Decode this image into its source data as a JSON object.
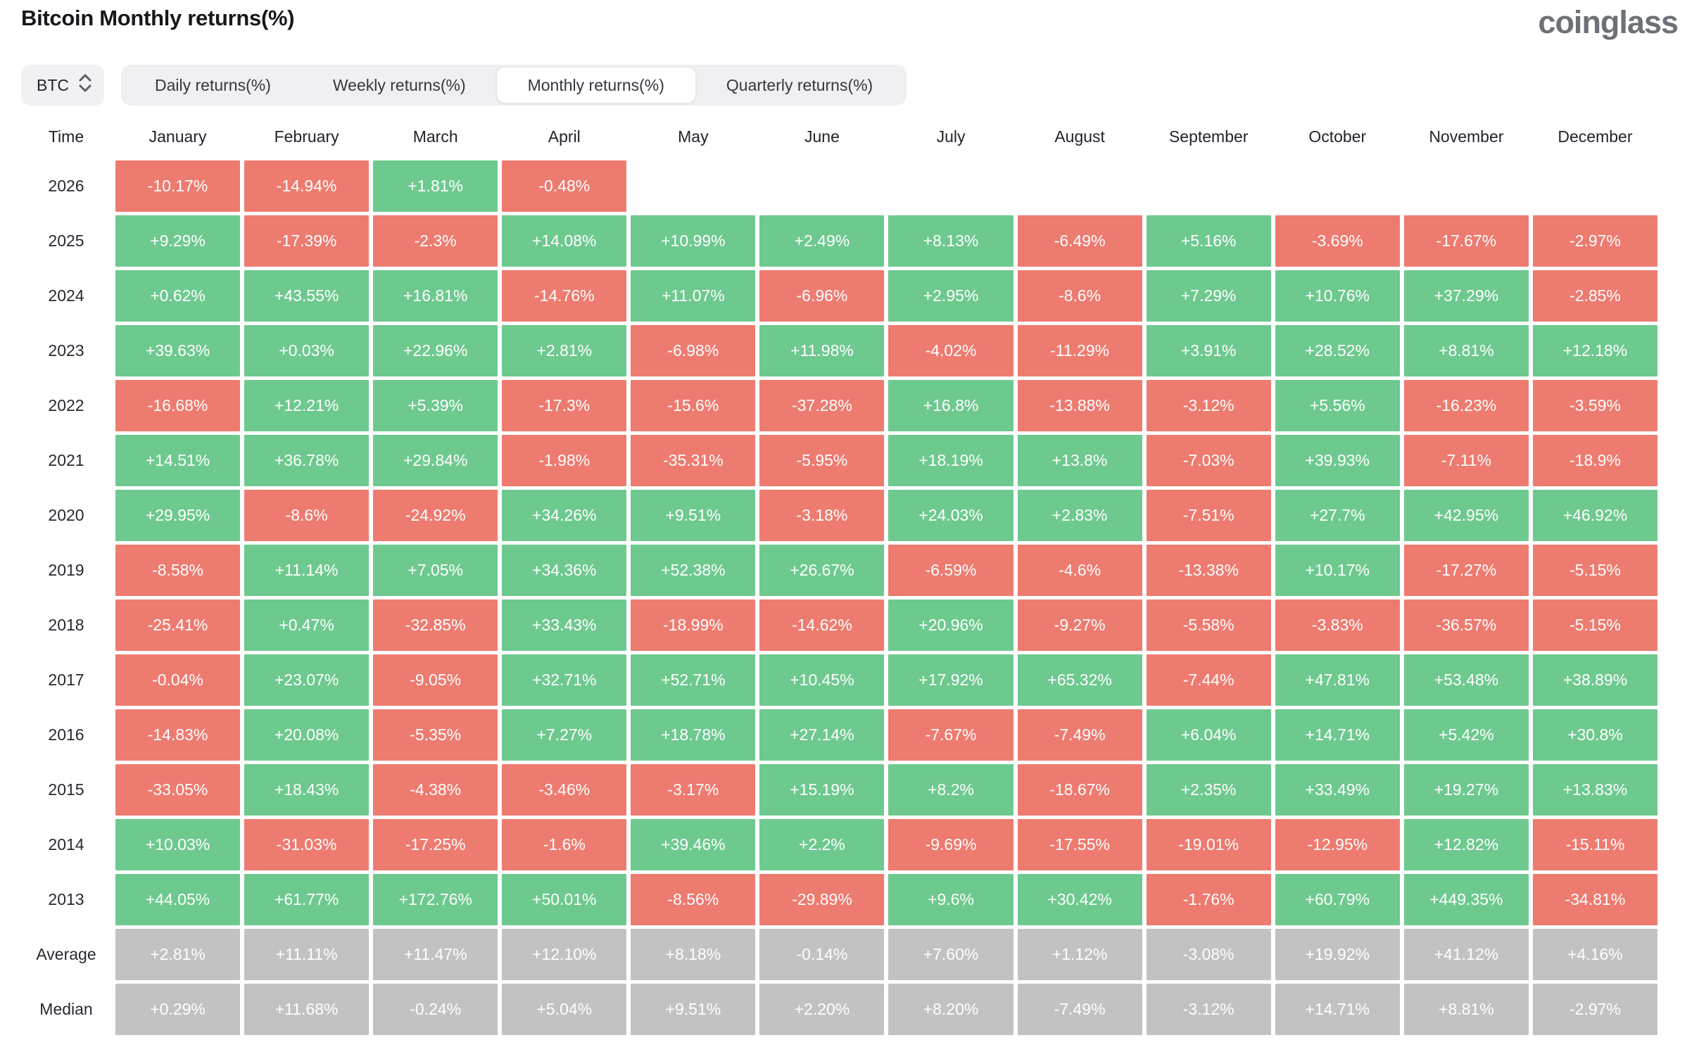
{
  "page": {
    "title": "Bitcoin Monthly returns(%)",
    "logo": "coinglass"
  },
  "controls": {
    "symbol_select": {
      "value": "BTC"
    },
    "tabs": [
      {
        "id": "daily",
        "label": "Daily returns(%)",
        "active": false
      },
      {
        "id": "weekly",
        "label": "Weekly returns(%)",
        "active": false
      },
      {
        "id": "monthly",
        "label": "Monthly returns(%)",
        "active": true
      },
      {
        "id": "quarterly",
        "label": "Quarterly returns(%)",
        "active": false
      }
    ]
  },
  "colors": {
    "positive": "#6ec98f",
    "negative": "#ee7b70",
    "neutral": "#c2c2c2",
    "tab_bar_bg": "#f0f0f3",
    "active_tab_bg": "#ffffff",
    "header_text": "#20242b",
    "cell_text": "#ffffff",
    "logo_gray": "#6d7177"
  },
  "icons": {
    "symbol_select_arrows": "select-updown-icon"
  },
  "chart_data": {
    "type": "heatmap",
    "title": "Bitcoin Monthly returns(%)",
    "unit": "%",
    "columns": [
      "Time",
      "January",
      "February",
      "March",
      "April",
      "May",
      "June",
      "July",
      "August",
      "September",
      "October",
      "November",
      "December"
    ],
    "rows": [
      {
        "label": "2026",
        "style": "signed",
        "values": [
          "-10.17%",
          "-14.94%",
          "+1.81%",
          "-0.48%",
          null,
          null,
          null,
          null,
          null,
          null,
          null,
          null
        ]
      },
      {
        "label": "2025",
        "style": "signed",
        "values": [
          "+9.29%",
          "-17.39%",
          "-2.3%",
          "+14.08%",
          "+10.99%",
          "+2.49%",
          "+8.13%",
          "-6.49%",
          "+5.16%",
          "-3.69%",
          "-17.67%",
          "-2.97%"
        ]
      },
      {
        "label": "2024",
        "style": "signed",
        "values": [
          "+0.62%",
          "+43.55%",
          "+16.81%",
          "-14.76%",
          "+11.07%",
          "-6.96%",
          "+2.95%",
          "-8.6%",
          "+7.29%",
          "+10.76%",
          "+37.29%",
          "-2.85%"
        ]
      },
      {
        "label": "2023",
        "style": "signed",
        "values": [
          "+39.63%",
          "+0.03%",
          "+22.96%",
          "+2.81%",
          "-6.98%",
          "+11.98%",
          "-4.02%",
          "-11.29%",
          "+3.91%",
          "+28.52%",
          "+8.81%",
          "+12.18%"
        ]
      },
      {
        "label": "2022",
        "style": "signed",
        "values": [
          "-16.68%",
          "+12.21%",
          "+5.39%",
          "-17.3%",
          "-15.6%",
          "-37.28%",
          "+16.8%",
          "-13.88%",
          "-3.12%",
          "+5.56%",
          "-16.23%",
          "-3.59%"
        ]
      },
      {
        "label": "2021",
        "style": "signed",
        "values": [
          "+14.51%",
          "+36.78%",
          "+29.84%",
          "-1.98%",
          "-35.31%",
          "-5.95%",
          "+18.19%",
          "+13.8%",
          "-7.03%",
          "+39.93%",
          "-7.11%",
          "-18.9%"
        ]
      },
      {
        "label": "2020",
        "style": "signed",
        "values": [
          "+29.95%",
          "-8.6%",
          "-24.92%",
          "+34.26%",
          "+9.51%",
          "-3.18%",
          "+24.03%",
          "+2.83%",
          "-7.51%",
          "+27.7%",
          "+42.95%",
          "+46.92%"
        ]
      },
      {
        "label": "2019",
        "style": "signed",
        "values": [
          "-8.58%",
          "+11.14%",
          "+7.05%",
          "+34.36%",
          "+52.38%",
          "+26.67%",
          "-6.59%",
          "-4.6%",
          "-13.38%",
          "+10.17%",
          "-17.27%",
          "-5.15%"
        ]
      },
      {
        "label": "2018",
        "style": "signed",
        "values": [
          "-25.41%",
          "+0.47%",
          "-32.85%",
          "+33.43%",
          "-18.99%",
          "-14.62%",
          "+20.96%",
          "-9.27%",
          "-5.58%",
          "-3.83%",
          "-36.57%",
          "-5.15%"
        ]
      },
      {
        "label": "2017",
        "style": "signed",
        "values": [
          "-0.04%",
          "+23.07%",
          "-9.05%",
          "+32.71%",
          "+52.71%",
          "+10.45%",
          "+17.92%",
          "+65.32%",
          "-7.44%",
          "+47.81%",
          "+53.48%",
          "+38.89%"
        ]
      },
      {
        "label": "2016",
        "style": "signed",
        "values": [
          "-14.83%",
          "+20.08%",
          "-5.35%",
          "+7.27%",
          "+18.78%",
          "+27.14%",
          "-7.67%",
          "-7.49%",
          "+6.04%",
          "+14.71%",
          "+5.42%",
          "+30.8%"
        ]
      },
      {
        "label": "2015",
        "style": "signed",
        "values": [
          "-33.05%",
          "+18.43%",
          "-4.38%",
          "-3.46%",
          "-3.17%",
          "+15.19%",
          "+8.2%",
          "-18.67%",
          "+2.35%",
          "+33.49%",
          "+19.27%",
          "+13.83%"
        ]
      },
      {
        "label": "2014",
        "style": "signed",
        "values": [
          "+10.03%",
          "-31.03%",
          "-17.25%",
          "-1.6%",
          "+39.46%",
          "+2.2%",
          "-9.69%",
          "-17.55%",
          "-19.01%",
          "-12.95%",
          "+12.82%",
          "-15.11%"
        ]
      },
      {
        "label": "2013",
        "style": "signed",
        "values": [
          "+44.05%",
          "+61.77%",
          "+172.76%",
          "+50.01%",
          "-8.56%",
          "-29.89%",
          "+9.6%",
          "+30.42%",
          "-1.76%",
          "+60.79%",
          "+449.35%",
          "-34.81%"
        ]
      },
      {
        "label": "Average",
        "style": "neutral",
        "values": [
          "+2.81%",
          "+11.11%",
          "+11.47%",
          "+12.10%",
          "+8.18%",
          "-0.14%",
          "+7.60%",
          "+1.12%",
          "-3.08%",
          "+19.92%",
          "+41.12%",
          "+4.16%"
        ]
      },
      {
        "label": "Median",
        "style": "neutral",
        "values": [
          "+0.29%",
          "+11.68%",
          "-0.24%",
          "+5.04%",
          "+9.51%",
          "+2.20%",
          "+8.20%",
          "-7.49%",
          "-3.12%",
          "+14.71%",
          "+8.81%",
          "-2.97%"
        ]
      }
    ]
  }
}
